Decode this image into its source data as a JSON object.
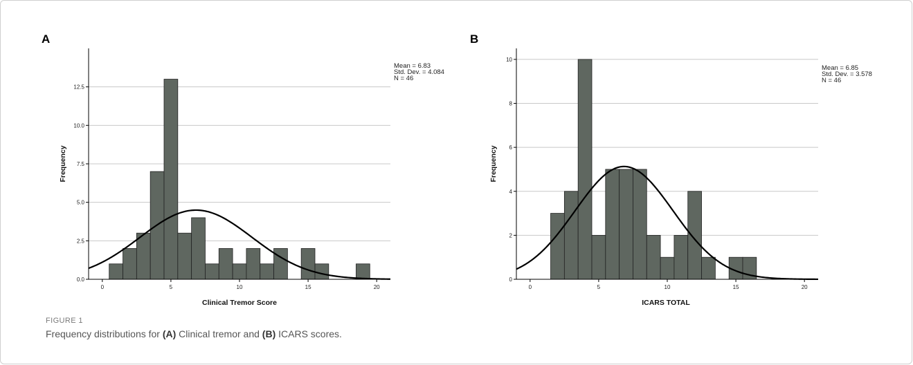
{
  "figure": {
    "label": "FIGURE 1",
    "caption": {
      "part1": "Frequency distributions for ",
      "a_tag": "(A)",
      "part2": " Clinical tremor and ",
      "b_tag": "(B)",
      "part3": " ICARS scores."
    }
  },
  "colors": {
    "bar_fill": "#5f6760",
    "bar_stroke": "#222222",
    "curve": "#000000",
    "grid": "#c8c8c8"
  },
  "chart_data": [
    {
      "panel": "A",
      "type": "bar",
      "xlabel": "Clinical Tremor Score",
      "ylabel": "Frequency",
      "xlim": [
        -1,
        21
      ],
      "ylim": [
        0,
        15
      ],
      "xticks": [
        0,
        5,
        10,
        15,
        20
      ],
      "yticks": [
        0.0,
        2.5,
        5.0,
        7.5,
        10.0,
        12.5
      ],
      "ytick_labels": [
        "0.0",
        "2.5",
        "5.0",
        "7.5",
        "10.0",
        "12.5"
      ],
      "bin_width": 1,
      "bins": [
        {
          "x": 1,
          "value": 1
        },
        {
          "x": 2,
          "value": 2
        },
        {
          "x": 3,
          "value": 3
        },
        {
          "x": 4,
          "value": 7
        },
        {
          "x": 5,
          "value": 13
        },
        {
          "x": 6,
          "value": 3
        },
        {
          "x": 7,
          "value": 4
        },
        {
          "x": 8,
          "value": 1
        },
        {
          "x": 9,
          "value": 2
        },
        {
          "x": 10,
          "value": 1
        },
        {
          "x": 11,
          "value": 2
        },
        {
          "x": 12,
          "value": 1
        },
        {
          "x": 13,
          "value": 2
        },
        {
          "x": 15,
          "value": 2
        },
        {
          "x": 16,
          "value": 1
        },
        {
          "x": 19,
          "value": 1
        }
      ],
      "normal_curve": {
        "mean": 6.83,
        "sd": 4.084,
        "n": 46
      },
      "stats": [
        "Mean = 6.83",
        "Std. Dev. = 4.084",
        "N = 46"
      ],
      "grid": "horizontal"
    },
    {
      "panel": "B",
      "type": "bar",
      "xlabel": "ICARS TOTAL",
      "ylabel": "Frequency",
      "xlim": [
        -1,
        21
      ],
      "ylim": [
        0,
        10.5
      ],
      "xticks": [
        0,
        5,
        10,
        15,
        20
      ],
      "yticks": [
        0,
        2,
        4,
        6,
        8,
        10
      ],
      "ytick_labels": [
        "0",
        "2",
        "4",
        "6",
        "8",
        "10"
      ],
      "bin_width": 1,
      "bins": [
        {
          "x": 2,
          "value": 3
        },
        {
          "x": 3,
          "value": 4
        },
        {
          "x": 4,
          "value": 10
        },
        {
          "x": 5,
          "value": 2
        },
        {
          "x": 6,
          "value": 5
        },
        {
          "x": 7,
          "value": 5
        },
        {
          "x": 8,
          "value": 5
        },
        {
          "x": 9,
          "value": 2
        },
        {
          "x": 10,
          "value": 1
        },
        {
          "x": 11,
          "value": 2
        },
        {
          "x": 12,
          "value": 4
        },
        {
          "x": 13,
          "value": 1
        },
        {
          "x": 15,
          "value": 1
        },
        {
          "x": 16,
          "value": 1
        }
      ],
      "normal_curve": {
        "mean": 6.85,
        "sd": 3.578,
        "n": 46
      },
      "stats": [
        "Mean = 6.85",
        "Std. Dev. = 3.578",
        "N = 46"
      ],
      "grid": "horizontal"
    }
  ]
}
